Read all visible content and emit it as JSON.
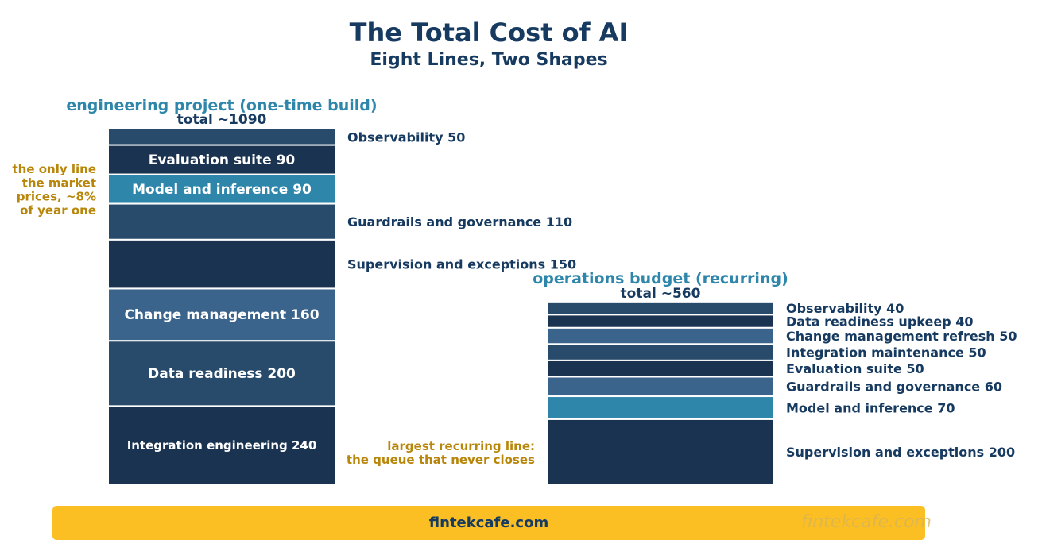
{
  "chart_data": {
    "type": "bar",
    "title": "The Total Cost of AI",
    "subtitle": "Eight Lines, Two Shapes",
    "stacks": [
      {
        "name": "engineering project (one-time build)",
        "total_label": "total ~1090",
        "segments": [
          {
            "label": "Integration engineering",
            "value": 240,
            "color": "#1a3350",
            "label_position": "inside"
          },
          {
            "label": "Data readiness",
            "value": 200,
            "color": "#284b6b",
            "label_position": "inside"
          },
          {
            "label": "Change management",
            "value": 160,
            "color": "#3b648c",
            "label_position": "inside"
          },
          {
            "label": "Supervision and exceptions",
            "value": 150,
            "color": "#1a3350",
            "label_position": "outside"
          },
          {
            "label": "Guardrails and governance",
            "value": 110,
            "color": "#284b6b",
            "label_position": "outside"
          },
          {
            "label": "Model and inference",
            "value": 90,
            "color": "#2e86ab",
            "label_position": "inside"
          },
          {
            "label": "Evaluation suite",
            "value": 90,
            "color": "#1a3350",
            "label_position": "inside"
          },
          {
            "label": "Observability",
            "value": 50,
            "color": "#284b6b",
            "label_position": "outside"
          }
        ],
        "annotation": "the only line\nthe market\nprices, ~8%\nof year one"
      },
      {
        "name": "operations budget (recurring)",
        "total_label": "total ~560",
        "segments": [
          {
            "label": "Supervision and exceptions",
            "value": 200,
            "color": "#1a3350",
            "label_position": "outside"
          },
          {
            "label": "Model and inference",
            "value": 70,
            "color": "#2e86ab",
            "label_position": "outside"
          },
          {
            "label": "Guardrails and governance",
            "value": 60,
            "color": "#3b648c",
            "label_position": "outside"
          },
          {
            "label": "Evaluation suite",
            "value": 50,
            "color": "#1a3350",
            "label_position": "outside"
          },
          {
            "label": "Integration maintenance",
            "value": 50,
            "color": "#284b6b",
            "label_position": "outside"
          },
          {
            "label": "Change management refresh",
            "value": 50,
            "color": "#3b648c",
            "label_position": "outside"
          },
          {
            "label": "Data readiness upkeep",
            "value": 40,
            "color": "#1a3350",
            "label_position": "outside"
          },
          {
            "label": "Observability",
            "value": 40,
            "color": "#284b6b",
            "label_position": "outside"
          }
        ],
        "annotation": "largest recurring line:\nthe queue that never closes"
      }
    ],
    "grid": false,
    "legend": "none"
  },
  "colors": {
    "title": "#163a60",
    "stack_name": "#2e86ab",
    "annotation": "#b8860b",
    "footer": "#fbbf24"
  },
  "footer": {
    "text": "fintekcafe.com",
    "watermark": "fintekcafe.com"
  }
}
